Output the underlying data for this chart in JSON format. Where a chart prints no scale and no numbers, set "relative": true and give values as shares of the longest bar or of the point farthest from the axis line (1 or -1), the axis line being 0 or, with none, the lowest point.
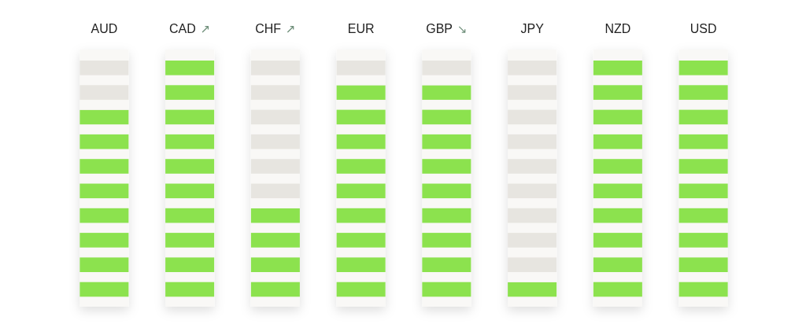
{
  "chart_data": {
    "type": "bar",
    "categories": [
      "AUD",
      "CAD",
      "CHF",
      "EUR",
      "GBP",
      "JPY",
      "NZD",
      "USD"
    ],
    "series": [
      {
        "color": "#8ce24e",
        "values": [
          0.8,
          1,
          0.4,
          0.9,
          0.9,
          0.1,
          1,
          1
        ]
      },
      {
        "color": "#e7e5e0",
        "values": [
          0.2,
          0,
          0.6,
          0.1,
          0.1,
          0.9,
          0,
          0
        ]
      }
    ],
    "stacked": true,
    "relative": true,
    "annotations": [
      {
        "text": "↗",
        "x": "CAD",
        "y": 1
      },
      {
        "text": "↗",
        "x": "CHF",
        "y": 1
      },
      {
        "text": "↘",
        "x": "GBP",
        "y": 1
      }
    ]
  }
}
